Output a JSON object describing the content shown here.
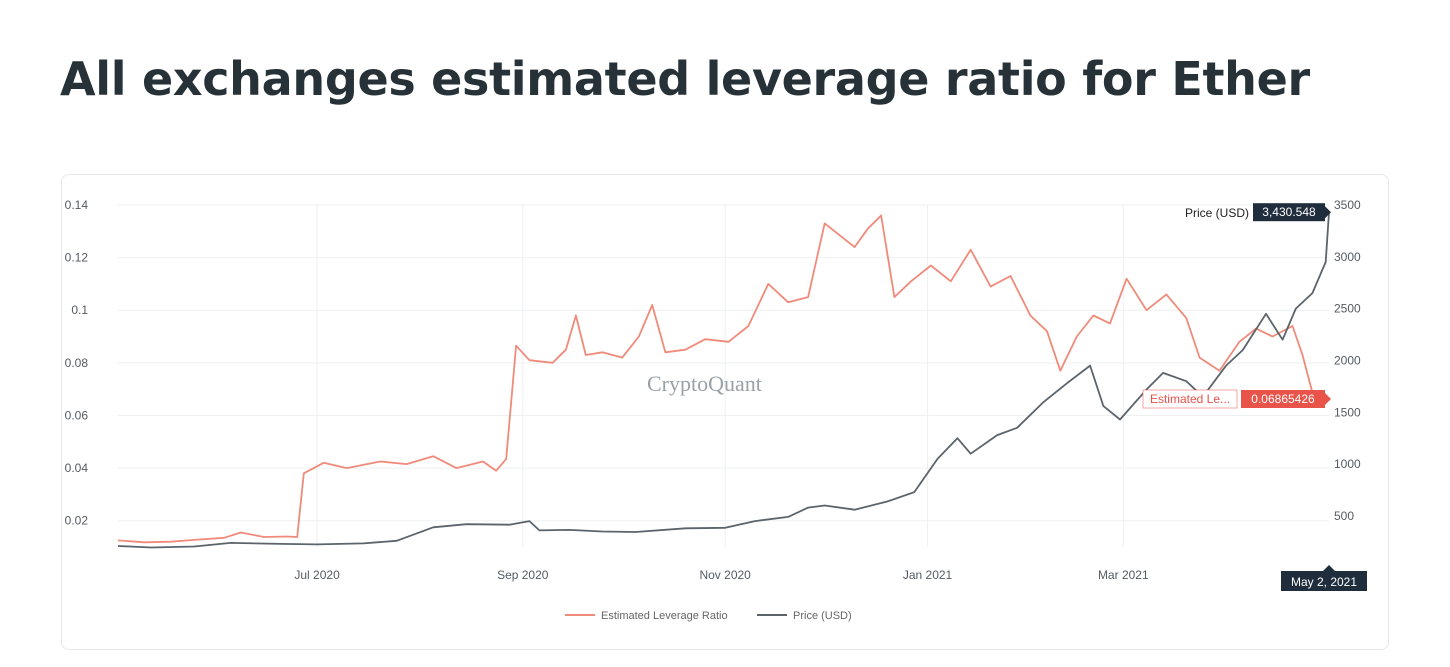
{
  "page": {
    "title": "All exchanges estimated leverage ratio for Ether"
  },
  "chart_data": {
    "type": "line",
    "watermark": "CryptoQuant",
    "x_ticks": [
      "Jul 2020",
      "Sep 2020",
      "Nov 2020",
      "Jan 2021",
      "Mar 2021"
    ],
    "x_tick_dates": [
      "2020-07-01",
      "2020-09-01",
      "2020-11-01",
      "2021-01-01",
      "2021-03-01"
    ],
    "x_range": [
      "2020-05-02",
      "2021-05-02"
    ],
    "y_left": {
      "range": [
        0.01,
        0.14
      ],
      "ticks": [
        0.02,
        0.04,
        0.06,
        0.08,
        0.1,
        0.12,
        0.14
      ],
      "tick_labels": [
        "0.02",
        "0.04",
        "0.06",
        "0.08",
        "0.1",
        "0.12",
        "0.14"
      ]
    },
    "y_right": {
      "range": [
        200,
        3500
      ],
      "ticks": [
        500,
        1000,
        1500,
        2000,
        2500,
        3000,
        3500
      ],
      "tick_labels": [
        "500",
        "1000",
        "1500",
        "2000",
        "2500",
        "3000",
        "3500"
      ]
    },
    "grid": true,
    "legend_position": "bottom-center",
    "series": [
      {
        "name": "Estimated Leverage Ratio",
        "axis": "left",
        "color": "#f08a7a",
        "points": [
          [
            "2020-05-02",
            0.0125
          ],
          [
            "2020-05-10",
            0.0118
          ],
          [
            "2020-05-18",
            0.012
          ],
          [
            "2020-05-26",
            0.0128
          ],
          [
            "2020-06-03",
            0.0135
          ],
          [
            "2020-06-08",
            0.0155
          ],
          [
            "2020-06-15",
            0.0138
          ],
          [
            "2020-06-22",
            0.014
          ],
          [
            "2020-06-25",
            0.0138
          ],
          [
            "2020-06-27",
            0.038
          ],
          [
            "2020-07-03",
            0.042
          ],
          [
            "2020-07-10",
            0.04
          ],
          [
            "2020-07-20",
            0.0425
          ],
          [
            "2020-07-28",
            0.0415
          ],
          [
            "2020-08-05",
            0.0445
          ],
          [
            "2020-08-12",
            0.04
          ],
          [
            "2020-08-20",
            0.0425
          ],
          [
            "2020-08-24",
            0.039
          ],
          [
            "2020-08-27",
            0.0435
          ],
          [
            "2020-08-30",
            0.0865
          ],
          [
            "2020-09-03",
            0.081
          ],
          [
            "2020-09-10",
            0.08
          ],
          [
            "2020-09-14",
            0.085
          ],
          [
            "2020-09-17",
            0.098
          ],
          [
            "2020-09-20",
            0.083
          ],
          [
            "2020-09-25",
            0.084
          ],
          [
            "2020-10-01",
            0.082
          ],
          [
            "2020-10-06",
            0.09
          ],
          [
            "2020-10-10",
            0.102
          ],
          [
            "2020-10-14",
            0.084
          ],
          [
            "2020-10-20",
            0.085
          ],
          [
            "2020-10-26",
            0.089
          ],
          [
            "2020-11-02",
            0.088
          ],
          [
            "2020-11-08",
            0.094
          ],
          [
            "2020-11-14",
            0.11
          ],
          [
            "2020-11-20",
            0.103
          ],
          [
            "2020-11-26",
            0.105
          ],
          [
            "2020-12-01",
            0.133
          ],
          [
            "2020-12-06",
            0.128
          ],
          [
            "2020-12-10",
            0.124
          ],
          [
            "2020-12-14",
            0.131
          ],
          [
            "2020-12-18",
            0.136
          ],
          [
            "2020-12-22",
            0.105
          ],
          [
            "2020-12-27",
            0.111
          ],
          [
            "2021-01-02",
            0.117
          ],
          [
            "2021-01-08",
            0.111
          ],
          [
            "2021-01-14",
            0.123
          ],
          [
            "2021-01-20",
            0.109
          ],
          [
            "2021-01-26",
            0.113
          ],
          [
            "2021-02-01",
            0.098
          ],
          [
            "2021-02-06",
            0.092
          ],
          [
            "2021-02-10",
            0.077
          ],
          [
            "2021-02-15",
            0.09
          ],
          [
            "2021-02-20",
            0.098
          ],
          [
            "2021-02-25",
            0.095
          ],
          [
            "2021-03-02",
            0.112
          ],
          [
            "2021-03-08",
            0.1
          ],
          [
            "2021-03-14",
            0.106
          ],
          [
            "2021-03-20",
            0.097
          ],
          [
            "2021-03-24",
            0.082
          ],
          [
            "2021-03-30",
            0.077
          ],
          [
            "2021-04-05",
            0.088
          ],
          [
            "2021-04-10",
            0.093
          ],
          [
            "2021-04-15",
            0.09
          ],
          [
            "2021-04-21",
            0.094
          ],
          [
            "2021-04-24",
            0.083
          ],
          [
            "2021-04-27",
            0.0687
          ]
        ]
      },
      {
        "name": "Price (USD)",
        "axis": "right",
        "color": "#5c646b",
        "points": [
          [
            "2020-05-02",
            210
          ],
          [
            "2020-05-12",
            195
          ],
          [
            "2020-05-25",
            205
          ],
          [
            "2020-06-05",
            240
          ],
          [
            "2020-06-20",
            230
          ],
          [
            "2020-07-01",
            225
          ],
          [
            "2020-07-15",
            235
          ],
          [
            "2020-07-25",
            260
          ],
          [
            "2020-08-05",
            390
          ],
          [
            "2020-08-15",
            420
          ],
          [
            "2020-08-28",
            415
          ],
          [
            "2020-09-03",
            450
          ],
          [
            "2020-09-06",
            360
          ],
          [
            "2020-09-15",
            365
          ],
          [
            "2020-09-25",
            350
          ],
          [
            "2020-10-05",
            345
          ],
          [
            "2020-10-20",
            380
          ],
          [
            "2020-11-01",
            385
          ],
          [
            "2020-11-10",
            450
          ],
          [
            "2020-11-20",
            490
          ],
          [
            "2020-11-26",
            580
          ],
          [
            "2020-12-01",
            600
          ],
          [
            "2020-12-10",
            560
          ],
          [
            "2020-12-20",
            640
          ],
          [
            "2020-12-28",
            730
          ],
          [
            "2021-01-04",
            1050
          ],
          [
            "2021-01-10",
            1250
          ],
          [
            "2021-01-14",
            1100
          ],
          [
            "2021-01-22",
            1280
          ],
          [
            "2021-01-28",
            1350
          ],
          [
            "2021-02-05",
            1600
          ],
          [
            "2021-02-12",
            1780
          ],
          [
            "2021-02-19",
            1950
          ],
          [
            "2021-02-23",
            1560
          ],
          [
            "2021-02-28",
            1430
          ],
          [
            "2021-03-08",
            1720
          ],
          [
            "2021-03-13",
            1880
          ],
          [
            "2021-03-20",
            1800
          ],
          [
            "2021-03-25",
            1650
          ],
          [
            "2021-04-01",
            1950
          ],
          [
            "2021-04-06",
            2100
          ],
          [
            "2021-04-13",
            2450
          ],
          [
            "2021-04-18",
            2200
          ],
          [
            "2021-04-22",
            2500
          ],
          [
            "2021-04-27",
            2650
          ],
          [
            "2021-05-01",
            2950
          ],
          [
            "2021-05-02",
            3430.548
          ]
        ]
      }
    ],
    "hover": {
      "date_label": "May 2, 2021",
      "price_name": "Price (USD)",
      "price_value": "3,430.548",
      "leverage_name": "Estimated Le...",
      "leverage_value": "0.06865426"
    },
    "colors": {
      "leverage": "#f08a7a",
      "price": "#5c646b",
      "hover_price_bg": "#1f2d3d",
      "hover_leverage_bg": "#e8534a"
    }
  }
}
